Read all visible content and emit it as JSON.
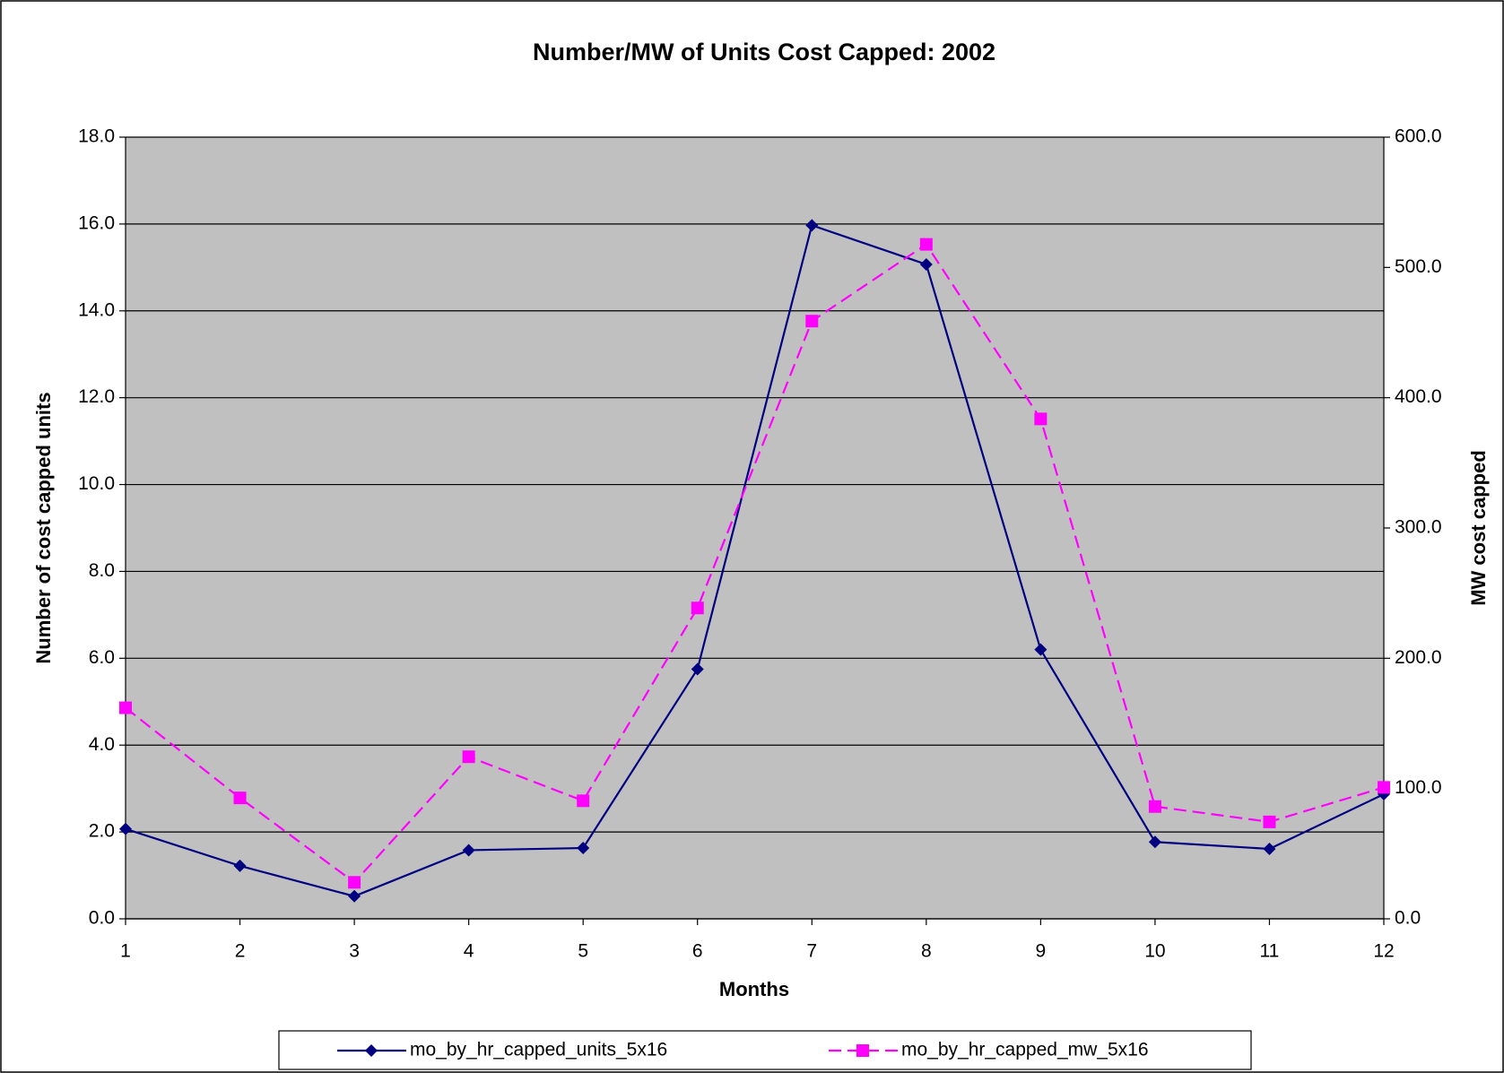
{
  "chart_data": {
    "type": "line",
    "title": "Number/MW of Units Cost Capped: 2002",
    "x_label": "Months",
    "y_label": "Number of cost capped units",
    "y2_label": "MW cost capped",
    "x": [
      1,
      2,
      3,
      4,
      5,
      6,
      7,
      8,
      9,
      10,
      11,
      12
    ],
    "xlim": [
      1,
      12
    ],
    "ylim": [
      0,
      18
    ],
    "yticks": [
      {
        "value": 0,
        "label": "0.0"
      },
      {
        "value": 2,
        "label": "2.0"
      },
      {
        "value": 4,
        "label": "4.0"
      },
      {
        "value": 6,
        "label": "6.0"
      },
      {
        "value": 8,
        "label": "8.0"
      },
      {
        "value": 10,
        "label": "10.0"
      },
      {
        "value": 12,
        "label": "12.0"
      },
      {
        "value": 14,
        "label": "14.0"
      },
      {
        "value": 16,
        "label": "16.0"
      },
      {
        "value": 18,
        "label": "18.0"
      }
    ],
    "y2lim": [
      0,
      600
    ],
    "y2ticks": [
      {
        "value": 0,
        "label": "0.0"
      },
      {
        "value": 100,
        "label": "100.0"
      },
      {
        "value": 200,
        "label": "200.0"
      },
      {
        "value": 300,
        "label": "300.0"
      },
      {
        "value": 400,
        "label": "400.0"
      },
      {
        "value": 500,
        "label": "500.0"
      },
      {
        "value": 600,
        "label": "600.0"
      }
    ],
    "grid": true,
    "plot_background": "#c0c0c0",
    "legend": "bottom",
    "series": [
      {
        "name": "mo_by_hr_capped_units_5x16",
        "color": "#000080",
        "marker": "diamond",
        "style": "solid",
        "axis": "y",
        "values": [
          2.07,
          1.22,
          0.52,
          1.58,
          1.63,
          5.75,
          15.97,
          15.07,
          6.2,
          1.77,
          1.61,
          2.87
        ]
      },
      {
        "name": "mo_by_hr_capped_mw_5x16",
        "color": "#ff00ff",
        "marker": "square",
        "style": "dashed",
        "axis": "y2",
        "values": [
          162,
          92.8,
          28,
          124.4,
          90.6,
          238.6,
          458.8,
          517.7,
          383.7,
          86.2,
          74.4,
          100.9
        ]
      }
    ]
  }
}
